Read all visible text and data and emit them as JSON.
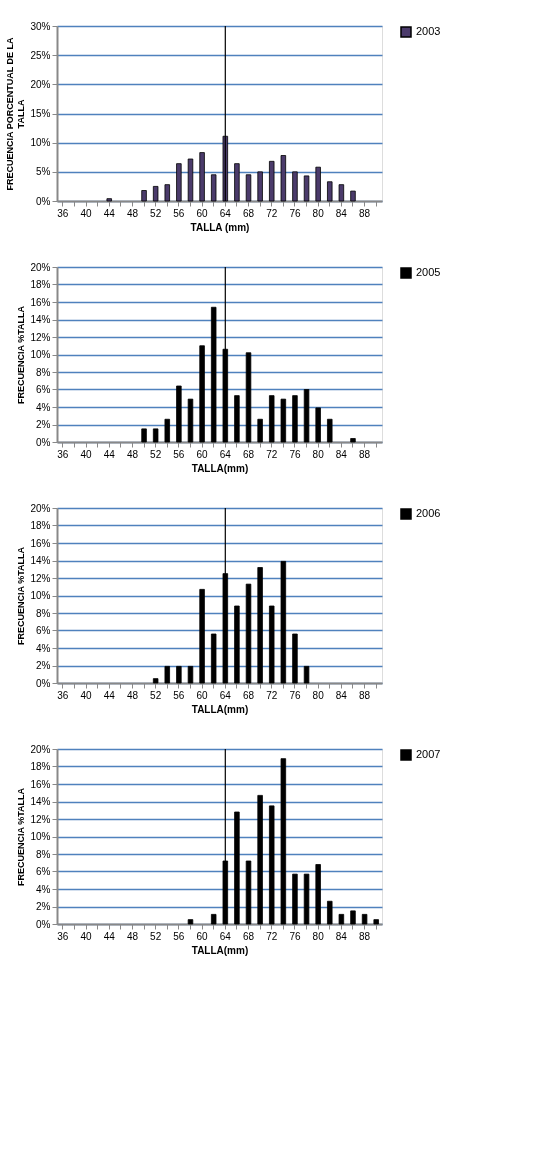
{
  "chart_data": [
    {
      "type": "bar",
      "xlabel": "TALLA (mm)",
      "ylabel": "FRECUENCIA PORCENTUAL DE LA TALLA",
      "categories": [
        "36",
        null,
        "40",
        null,
        "44",
        null,
        "48",
        null,
        "52",
        null,
        "56",
        null,
        "60",
        null,
        "64",
        null,
        "68",
        null,
        "72",
        null,
        "76",
        null,
        "80",
        null,
        "84",
        null,
        "88",
        null
      ],
      "series": [
        {
          "name": "2003",
          "color": "#4b3b6b",
          "values": [
            null,
            null,
            null,
            null,
            0.4,
            null,
            null,
            1.8,
            2.5,
            2.8,
            6.4,
            7.2,
            8.3,
            4.5,
            11.1,
            6.4,
            4.5,
            5.0,
            6.8,
            7.8,
            5.0,
            4.3,
            5.8,
            3.3,
            2.8,
            1.7,
            null,
            null
          ]
        }
      ],
      "ylim": [
        0,
        30
      ],
      "yticks": [
        {
          "value": 0,
          "label": "0%"
        },
        {
          "value": 5,
          "label": "5%"
        },
        {
          "value": 10,
          "label": "10%"
        },
        {
          "value": 15,
          "label": "15%"
        },
        {
          "value": 20,
          "label": "20%"
        },
        {
          "value": 25,
          "label": "25%"
        },
        {
          "value": 30,
          "label": "30%"
        }
      ],
      "grid": "y",
      "legend": "right",
      "ref_lines": [
        {
          "axis": "x",
          "value": "64",
          "color": "#000000"
        }
      ]
    },
    {
      "type": "bar",
      "xlabel": "TALLA(mm)",
      "ylabel": "FRECUENCIA %TALLA",
      "categories": [
        "36",
        null,
        "40",
        null,
        "44",
        null,
        "48",
        null,
        "52",
        null,
        "56",
        null,
        "60",
        null,
        "64",
        null,
        "68",
        null,
        "72",
        null,
        "76",
        null,
        "80",
        null,
        "84",
        null,
        "88",
        null
      ],
      "series": [
        {
          "name": "2005",
          "color": "#000000",
          "values": [
            null,
            null,
            null,
            null,
            null,
            null,
            null,
            1.5,
            1.5,
            2.6,
            6.4,
            4.9,
            11.0,
            15.4,
            10.6,
            5.3,
            10.2,
            2.6,
            5.3,
            4.9,
            5.3,
            6.0,
            3.9,
            2.6,
            null,
            0.4,
            null,
            null
          ]
        }
      ],
      "ylim": [
        0,
        20
      ],
      "yticks": [
        {
          "value": 0,
          "label": "0%"
        },
        {
          "value": 2,
          "label": "2%"
        },
        {
          "value": 4,
          "label": "4%"
        },
        {
          "value": 6,
          "label": "6%"
        },
        {
          "value": 8,
          "label": "8%"
        },
        {
          "value": 10,
          "label": "10%"
        },
        {
          "value": 12,
          "label": "12%"
        },
        {
          "value": 14,
          "label": "14%"
        },
        {
          "value": 16,
          "label": "16%"
        },
        {
          "value": 18,
          "label": "18%"
        },
        {
          "value": 20,
          "label": "20%"
        }
      ],
      "grid": "y",
      "legend": "right",
      "ref_lines": [
        {
          "axis": "x",
          "value": "64",
          "color": "#000000"
        }
      ]
    },
    {
      "type": "bar",
      "xlabel": "TALLA(mm)",
      "ylabel": "FRECUENCIA %TALLA",
      "categories": [
        "36",
        null,
        "40",
        null,
        "44",
        null,
        "48",
        null,
        "52",
        null,
        "56",
        null,
        "60",
        null,
        "64",
        null,
        "68",
        null,
        "72",
        null,
        "76",
        null,
        "80",
        null,
        "84",
        null,
        "88",
        null
      ],
      "series": [
        {
          "name": "2006",
          "color": "#000000",
          "values": [
            null,
            null,
            null,
            null,
            null,
            null,
            null,
            null,
            0.5,
            1.9,
            1.9,
            1.9,
            10.7,
            5.6,
            12.5,
            8.8,
            11.3,
            13.2,
            8.8,
            13.9,
            5.6,
            1.9,
            null,
            null,
            null,
            null,
            null,
            null
          ]
        }
      ],
      "ylim": [
        0,
        20
      ],
      "yticks": [
        {
          "value": 0,
          "label": "0%"
        },
        {
          "value": 2,
          "label": "2%"
        },
        {
          "value": 4,
          "label": "4%"
        },
        {
          "value": 6,
          "label": "6%"
        },
        {
          "value": 8,
          "label": "8%"
        },
        {
          "value": 10,
          "label": "10%"
        },
        {
          "value": 12,
          "label": "12%"
        },
        {
          "value": 14,
          "label": "14%"
        },
        {
          "value": 16,
          "label": "16%"
        },
        {
          "value": 18,
          "label": "18%"
        },
        {
          "value": 20,
          "label": "20%"
        }
      ],
      "grid": "y",
      "legend": "right",
      "ref_lines": [
        {
          "axis": "x",
          "value": "64",
          "color": "#000000"
        }
      ]
    },
    {
      "type": "bar",
      "xlabel": "TALLA(mm)",
      "ylabel": "FRECUENCIA %TALLA",
      "categories": [
        "36",
        null,
        "40",
        null,
        "44",
        null,
        "48",
        null,
        "52",
        null,
        "56",
        null,
        "60",
        null,
        "64",
        null,
        "68",
        null,
        "72",
        null,
        "76",
        null,
        "80",
        null,
        "84",
        null,
        "88",
        null
      ],
      "series": [
        {
          "name": "2007",
          "color": "#000000",
          "values": [
            null,
            null,
            null,
            null,
            null,
            null,
            null,
            null,
            null,
            null,
            null,
            0.5,
            null,
            1.1,
            7.2,
            12.8,
            7.2,
            14.7,
            13.5,
            18.9,
            5.7,
            5.7,
            6.8,
            2.6,
            1.1,
            1.5,
            1.1,
            0.5
          ]
        }
      ],
      "ylim": [
        0,
        20
      ],
      "yticks": [
        {
          "value": 0,
          "label": "0%"
        },
        {
          "value": 2,
          "label": "2%"
        },
        {
          "value": 4,
          "label": "4%"
        },
        {
          "value": 6,
          "label": "6%"
        },
        {
          "value": 8,
          "label": "8%"
        },
        {
          "value": 10,
          "label": "10%"
        },
        {
          "value": 12,
          "label": "12%"
        },
        {
          "value": 14,
          "label": "14%"
        },
        {
          "value": 16,
          "label": "16%"
        },
        {
          "value": 18,
          "label": "18%"
        },
        {
          "value": 20,
          "label": "20%"
        }
      ],
      "grid": "y",
      "legend": "right",
      "ref_lines": [
        {
          "axis": "x",
          "value": "64",
          "color": "#000000"
        }
      ]
    }
  ]
}
